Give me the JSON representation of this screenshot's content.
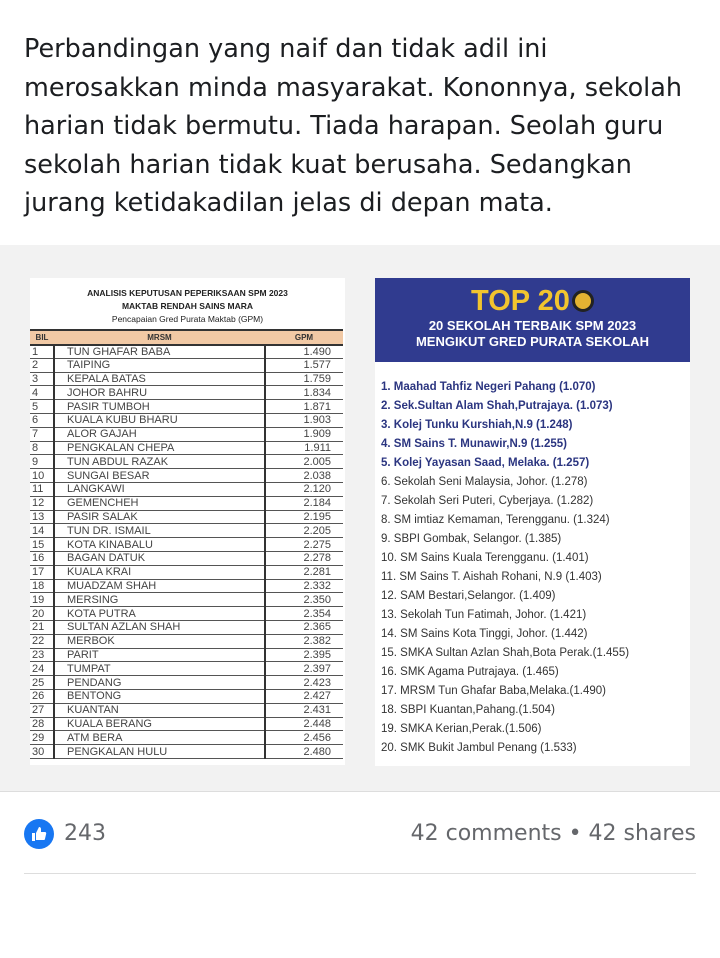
{
  "post": {
    "text": "Perbandingan yang naif dan tidak adil ini merosakkan minda masyarakat. Kononnya, sekolah harian tidak bermutu. Tiada harapan. Seolah guru sekolah harian tidak kuat berusaha. Sedangkan jurang ketidakadilan jelas di depan mata."
  },
  "table_image": {
    "title1": "ANALISIS KEPUTUSAN PEPERIKSAAN SPM 2023",
    "title2": "MAKTAB RENDAH SAINS MARA",
    "title3": "Pencapaian Gred Purata Maktab (GPM)",
    "headers": [
      "BIL",
      "MRSM",
      "GPM"
    ],
    "rows": [
      [
        "1",
        "TUN GHAFAR BABA",
        "1.490"
      ],
      [
        "2",
        "TAIPING",
        "1.577"
      ],
      [
        "3",
        "KEPALA BATAS",
        "1.759"
      ],
      [
        "4",
        "JOHOR BAHRU",
        "1.834"
      ],
      [
        "5",
        "PASIR TUMBOH",
        "1.871"
      ],
      [
        "6",
        "KUALA KUBU BHARU",
        "1.903"
      ],
      [
        "7",
        "ALOR GAJAH",
        "1.909"
      ],
      [
        "8",
        "PENGKALAN CHEPA",
        "1.911"
      ],
      [
        "9",
        "TUN ABDUL RAZAK",
        "2.005"
      ],
      [
        "10",
        "SUNGAI BESAR",
        "2.038"
      ],
      [
        "11",
        "LANGKAWI",
        "2.120"
      ],
      [
        "12",
        "GEMENCHEH",
        "2.184"
      ],
      [
        "13",
        "PASIR SALAK",
        "2.195"
      ],
      [
        "14",
        "TUN DR. ISMAIL",
        "2.205"
      ],
      [
        "15",
        "KOTA KINABALU",
        "2.275"
      ],
      [
        "16",
        "BAGAN DATUK",
        "2.278"
      ],
      [
        "17",
        "KUALA KRAI",
        "2.281"
      ],
      [
        "18",
        "MUADZAM SHAH",
        "2.332"
      ],
      [
        "19",
        "MERSING",
        "2.350"
      ],
      [
        "20",
        "KOTA PUTRA",
        "2.354"
      ],
      [
        "21",
        "SULTAN AZLAN SHAH",
        "2.365"
      ],
      [
        "22",
        "MERBOK",
        "2.382"
      ],
      [
        "23",
        "PARIT",
        "2.395"
      ],
      [
        "24",
        "TUMPAT",
        "2.397"
      ],
      [
        "25",
        "PENDANG",
        "2.423"
      ],
      [
        "26",
        "BENTONG",
        "2.427"
      ],
      [
        "27",
        "KUANTAN",
        "2.431"
      ],
      [
        "28",
        "KUALA BERANG",
        "2.448"
      ],
      [
        "29",
        "ATM BERA",
        "2.456"
      ],
      [
        "30",
        "PENGKALAN HULU",
        "2.480"
      ]
    ]
  },
  "top_image": {
    "title": "TOP 20",
    "subtitle1": "20 SEKOLAH TERBAIK SPM 2023",
    "subtitle2": "MENGIKUT GRED PURATA SEKOLAH",
    "items": [
      "1. Maahad Tahfiz Negeri Pahang (1.070)",
      "2. Sek.Sultan Alam Shah,Putrajaya. (1.073)",
      "3. Kolej Tunku Kurshiah,N.9 (1.248)",
      "4. SM Sains T. Munawir,N.9 (1.255)",
      "5. Kolej Yayasan Saad, Melaka. (1.257)",
      "6. Sekolah Seni Malaysia, Johor. (1.278)",
      "7. Sekolah Seri Puteri, Cyberjaya. (1.282)",
      "8. SM imtiaz Kemaman, Terengganu. (1.324)",
      "9. SBPI Gombak, Selangor. (1.385)",
      "10. SM Sains Kuala Terengganu. (1.401)",
      "11. SM Sains T. Aishah Rohani, N.9 (1.403)",
      "12. SAM Bestari,Selangor. (1.409)",
      "13. Sekolah Tun Fatimah, Johor. (1.421)",
      "14. SM Sains Kota Tinggi, Johor. (1.442)",
      "15. SMKA Sultan Azlan Shah,Bota Perak.(1.455)",
      "16. SMK Agama Putrajaya. (1.465)",
      "17. MRSM Tun Ghafar Baba,Melaka.(1.490)",
      "18. SBPI Kuantan,Pahang.(1.504)",
      "19. SMKA Kerian,Perak.(1.506)",
      "20. SMK Bukit Jambul Penang (1.533)"
    ],
    "colors": {
      "banner": "#303b8f",
      "title": "#f2c42e",
      "highlight": "#2b3580"
    }
  },
  "footer": {
    "likes": "243",
    "stats": "42 comments • 42 shares",
    "like_icon": "thumbs-up-icon"
  }
}
